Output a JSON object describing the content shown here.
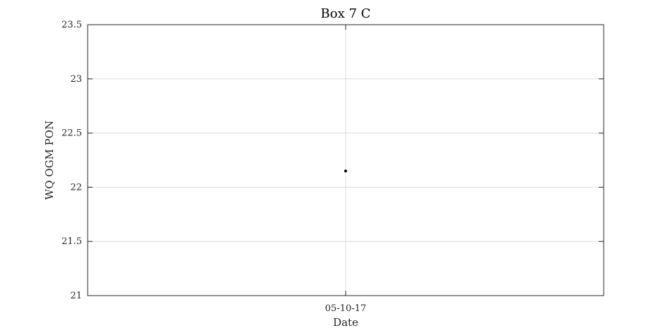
{
  "chart_data": {
    "type": "scatter",
    "title": "Box 7 C",
    "xlabel": "Date",
    "ylabel": "WQ OGM PON",
    "x_ticks": [
      "05-10-17"
    ],
    "ylim": [
      21,
      23.5
    ],
    "y_ticks": [
      21,
      21.5,
      22,
      22.5,
      23,
      23.5
    ],
    "y_tick_labels": [
      "21",
      "21.5",
      "22",
      "22.5",
      "23",
      "23.5"
    ],
    "grid": true,
    "series": [
      {
        "x": [
          "05-10-17"
        ],
        "values": [
          22.15
        ],
        "color": "#000000"
      }
    ]
  }
}
